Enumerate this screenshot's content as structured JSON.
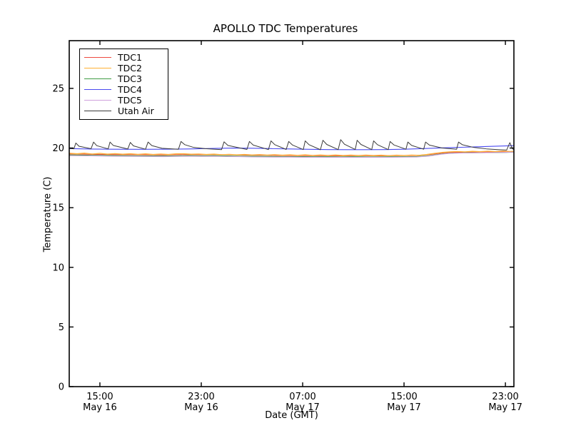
{
  "title": "APOLLO TDC Temperatures",
  "chart_data": {
    "type": "line",
    "title": "APOLLO TDC Temperatures",
    "xlabel": "Date (GMT)",
    "ylabel": "Temperature (C)",
    "x_unit": "hours since May 16 00:00 GMT",
    "xlim": [
      12.58,
      47.67
    ],
    "ylim": [
      0,
      29
    ],
    "grid": false,
    "legend_position": "upper left",
    "xticks": [
      {
        "t": 15,
        "time": "15:00",
        "date": "May 16"
      },
      {
        "t": 23,
        "time": "23:00",
        "date": "May 16"
      },
      {
        "t": 31,
        "time": "07:00",
        "date": "May 17"
      },
      {
        "t": 39,
        "time": "15:00",
        "date": "May 17"
      },
      {
        "t": 47,
        "time": "23:00",
        "date": "May 17"
      }
    ],
    "yticks": [
      {
        "v": 0,
        "label": "0"
      },
      {
        "v": 5,
        "label": "5"
      },
      {
        "v": 10,
        "label": "10"
      },
      {
        "v": 15,
        "label": "15"
      },
      {
        "v": 20,
        "label": "20"
      },
      {
        "v": 25,
        "label": "25"
      }
    ],
    "series": [
      {
        "name": "TDC1",
        "color": "#ee4a41",
        "width": 1.1,
        "points": [
          [
            12.6,
            19.5
          ],
          [
            14,
            19.48
          ],
          [
            16,
            19.45
          ],
          [
            18,
            19.44
          ],
          [
            20,
            19.42
          ],
          [
            21,
            19.44
          ],
          [
            22,
            19.46
          ],
          [
            23,
            19.44
          ],
          [
            24,
            19.46
          ],
          [
            25,
            19.44
          ],
          [
            26,
            19.42
          ],
          [
            27,
            19.4
          ],
          [
            28,
            19.4
          ],
          [
            29,
            19.38
          ],
          [
            30,
            19.37
          ],
          [
            31,
            19.37
          ],
          [
            32,
            19.36
          ],
          [
            33,
            19.36
          ],
          [
            34,
            19.35
          ],
          [
            35,
            19.36
          ],
          [
            36,
            19.36
          ],
          [
            37,
            19.35
          ],
          [
            38,
            19.36
          ],
          [
            39,
            19.37
          ],
          [
            40,
            19.38
          ],
          [
            41,
            19.45
          ],
          [
            41.5,
            19.52
          ],
          [
            42,
            19.58
          ],
          [
            42.5,
            19.62
          ],
          [
            43,
            19.64
          ],
          [
            44,
            19.65
          ],
          [
            45,
            19.66
          ],
          [
            46,
            19.67
          ],
          [
            47,
            19.68
          ],
          [
            47.67,
            19.7
          ]
        ]
      },
      {
        "name": "TDC2",
        "color": "#ffaf33",
        "width": 1.3,
        "points": [
          [
            12.6,
            19.56
          ],
          [
            13.2,
            19.52
          ],
          [
            13.8,
            19.57
          ],
          [
            14.4,
            19.5
          ],
          [
            15.0,
            19.55
          ],
          [
            15.6,
            19.49
          ],
          [
            16.2,
            19.53
          ],
          [
            16.8,
            19.48
          ],
          [
            17.4,
            19.52
          ],
          [
            18.0,
            19.47
          ],
          [
            18.6,
            19.51
          ],
          [
            19.2,
            19.46
          ],
          [
            19.8,
            19.5
          ],
          [
            20.4,
            19.46
          ],
          [
            21.0,
            19.51
          ],
          [
            21.6,
            19.52
          ],
          [
            22.2,
            19.48
          ],
          [
            22.8,
            19.5
          ],
          [
            23.4,
            19.46
          ],
          [
            24.0,
            19.49
          ],
          [
            24.6,
            19.44
          ],
          [
            25.2,
            19.47
          ],
          [
            25.8,
            19.43
          ],
          [
            26.4,
            19.46
          ],
          [
            27.0,
            19.42
          ],
          [
            27.6,
            19.45
          ],
          [
            28.2,
            19.41
          ],
          [
            28.8,
            19.44
          ],
          [
            29.4,
            19.4
          ],
          [
            30.0,
            19.43
          ],
          [
            30.6,
            19.39
          ],
          [
            31.2,
            19.43
          ],
          [
            31.8,
            19.38
          ],
          [
            32.4,
            19.42
          ],
          [
            33.0,
            19.38
          ],
          [
            33.6,
            19.42
          ],
          [
            34.2,
            19.37
          ],
          [
            34.8,
            19.41
          ],
          [
            35.4,
            19.37
          ],
          [
            36.0,
            19.41
          ],
          [
            36.6,
            19.37
          ],
          [
            37.2,
            19.4
          ],
          [
            37.8,
            19.36
          ],
          [
            38.4,
            19.4
          ],
          [
            39.0,
            19.37
          ],
          [
            39.6,
            19.41
          ],
          [
            40.2,
            19.39
          ],
          [
            40.8,
            19.46
          ],
          [
            41.4,
            19.55
          ],
          [
            42.0,
            19.63
          ],
          [
            42.6,
            19.68
          ],
          [
            43.2,
            19.7
          ],
          [
            43.8,
            19.68
          ],
          [
            44.4,
            19.72
          ],
          [
            45.0,
            19.69
          ],
          [
            45.6,
            19.73
          ],
          [
            46.2,
            19.7
          ],
          [
            46.8,
            19.74
          ],
          [
            47.4,
            19.71
          ],
          [
            47.67,
            19.73
          ]
        ]
      },
      {
        "name": "TDC3",
        "color": "#3d9c42",
        "width": 1.1,
        "points": [
          [
            12.6,
            19.42
          ],
          [
            14,
            19.4
          ],
          [
            16,
            19.37
          ],
          [
            18,
            19.35
          ],
          [
            20,
            19.33
          ],
          [
            21,
            19.35
          ],
          [
            22,
            19.37
          ],
          [
            23,
            19.35
          ],
          [
            24,
            19.36
          ],
          [
            25,
            19.34
          ],
          [
            26,
            19.32
          ],
          [
            27,
            19.31
          ],
          [
            28,
            19.3
          ],
          [
            29,
            19.29
          ],
          [
            30,
            19.28
          ],
          [
            31,
            19.28
          ],
          [
            32,
            19.27
          ],
          [
            33,
            19.27
          ],
          [
            34,
            19.26
          ],
          [
            35,
            19.27
          ],
          [
            36,
            19.26
          ],
          [
            37,
            19.26
          ],
          [
            38,
            19.27
          ],
          [
            39,
            19.28
          ],
          [
            40,
            19.29
          ],
          [
            41,
            19.36
          ],
          [
            41.5,
            19.44
          ],
          [
            42,
            19.51
          ],
          [
            42.5,
            19.56
          ],
          [
            43,
            19.58
          ],
          [
            44,
            19.6
          ],
          [
            45,
            19.61
          ],
          [
            46,
            19.62
          ],
          [
            47,
            19.63
          ],
          [
            47.67,
            19.65
          ]
        ]
      },
      {
        "name": "TDC4",
        "color": "#4a4af0",
        "width": 1.1,
        "points": [
          [
            12.6,
            19.95
          ],
          [
            14,
            19.92
          ],
          [
            16,
            19.9
          ],
          [
            18,
            19.89
          ],
          [
            20,
            19.9
          ],
          [
            22,
            19.92
          ],
          [
            24,
            19.97
          ],
          [
            25.5,
            20.0
          ],
          [
            27,
            19.98
          ],
          [
            28.5,
            19.95
          ],
          [
            30,
            19.92
          ],
          [
            31.5,
            19.89
          ],
          [
            33,
            19.87
          ],
          [
            34.5,
            19.86
          ],
          [
            36,
            19.86
          ],
          [
            37.5,
            19.87
          ],
          [
            39,
            19.9
          ],
          [
            40.5,
            19.95
          ],
          [
            42,
            20.01
          ],
          [
            43.5,
            20.06
          ],
          [
            45,
            20.11
          ],
          [
            46.5,
            20.16
          ],
          [
            47.67,
            20.2
          ]
        ]
      },
      {
        "name": "TDC5",
        "color": "#cfa0dc",
        "width": 1.1,
        "points": [
          [
            12.6,
            19.36
          ],
          [
            14,
            19.35
          ],
          [
            16,
            19.32
          ],
          [
            18,
            19.3
          ],
          [
            20,
            19.28
          ],
          [
            21,
            19.3
          ],
          [
            22,
            19.32
          ],
          [
            23,
            19.3
          ],
          [
            24,
            19.31
          ],
          [
            25,
            19.29
          ],
          [
            26,
            19.28
          ],
          [
            27,
            19.26
          ],
          [
            28,
            19.25
          ],
          [
            29,
            19.24
          ],
          [
            30,
            19.24
          ],
          [
            31,
            19.23
          ],
          [
            32,
            19.23
          ],
          [
            33,
            19.22
          ],
          [
            34,
            19.22
          ],
          [
            35,
            19.22
          ],
          [
            36,
            19.22
          ],
          [
            37,
            19.22
          ],
          [
            38,
            19.23
          ],
          [
            39,
            19.24
          ],
          [
            40,
            19.25
          ],
          [
            41,
            19.33
          ],
          [
            41.5,
            19.41
          ],
          [
            42,
            19.49
          ],
          [
            42.5,
            19.54
          ],
          [
            43,
            19.57
          ],
          [
            44,
            19.59
          ],
          [
            45,
            19.61
          ],
          [
            46,
            19.62
          ],
          [
            47,
            19.64
          ],
          [
            47.67,
            19.66
          ]
        ]
      },
      {
        "name": "Utah Air",
        "color": "#3a3a3a",
        "width": 1.0,
        "points": [
          [
            12.6,
            19.97
          ],
          [
            12.95,
            19.93
          ],
          [
            13.1,
            20.42
          ],
          [
            13.35,
            20.15
          ],
          [
            14.3,
            19.94
          ],
          [
            14.5,
            20.5
          ],
          [
            14.75,
            20.2
          ],
          [
            15.65,
            19.93
          ],
          [
            15.8,
            20.5
          ],
          [
            16.05,
            20.22
          ],
          [
            17.2,
            19.92
          ],
          [
            17.4,
            20.47
          ],
          [
            17.65,
            20.18
          ],
          [
            18.6,
            19.9
          ],
          [
            18.8,
            20.5
          ],
          [
            19.1,
            20.2
          ],
          [
            19.9,
            19.98
          ],
          [
            21.2,
            19.9
          ],
          [
            21.4,
            20.55
          ],
          [
            21.7,
            20.28
          ],
          [
            22.4,
            20.05
          ],
          [
            23.3,
            19.95
          ],
          [
            24.6,
            19.87
          ],
          [
            24.8,
            20.52
          ],
          [
            25.1,
            20.22
          ],
          [
            26.6,
            19.88
          ],
          [
            26.8,
            20.55
          ],
          [
            27.1,
            20.25
          ],
          [
            28.3,
            19.87
          ],
          [
            28.5,
            20.6
          ],
          [
            28.8,
            20.28
          ],
          [
            29.7,
            19.88
          ],
          [
            29.9,
            20.55
          ],
          [
            30.2,
            20.25
          ],
          [
            31.05,
            19.87
          ],
          [
            31.2,
            20.6
          ],
          [
            31.5,
            20.28
          ],
          [
            32.4,
            19.86
          ],
          [
            32.6,
            20.65
          ],
          [
            32.9,
            20.3
          ],
          [
            33.8,
            19.87
          ],
          [
            34.0,
            20.7
          ],
          [
            34.3,
            20.32
          ],
          [
            35.15,
            19.88
          ],
          [
            35.3,
            20.65
          ],
          [
            35.6,
            20.3
          ],
          [
            36.45,
            19.87
          ],
          [
            36.6,
            20.6
          ],
          [
            36.9,
            20.28
          ],
          [
            37.75,
            19.87
          ],
          [
            37.9,
            20.55
          ],
          [
            38.2,
            20.26
          ],
          [
            39.15,
            19.9
          ],
          [
            39.3,
            20.5
          ],
          [
            39.6,
            20.22
          ],
          [
            40.55,
            19.9
          ],
          [
            40.7,
            20.5
          ],
          [
            41.0,
            20.25
          ],
          [
            42.0,
            20.0
          ],
          [
            43.15,
            19.9
          ],
          [
            43.3,
            20.5
          ],
          [
            43.6,
            20.28
          ],
          [
            44.5,
            20.05
          ],
          [
            45.5,
            19.93
          ],
          [
            46.5,
            19.86
          ],
          [
            47.1,
            19.83
          ],
          [
            47.35,
            20.45
          ],
          [
            47.55,
            19.95
          ],
          [
            47.67,
            19.85
          ]
        ]
      }
    ]
  }
}
